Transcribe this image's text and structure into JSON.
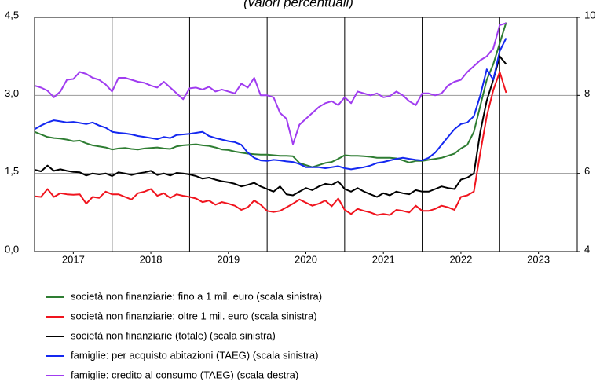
{
  "chart_data": {
    "type": "line",
    "subtitle": "(valori percentuali)",
    "x": [
      2017,
      2017.083,
      2017.167,
      2017.25,
      2017.333,
      2017.417,
      2017.5,
      2017.583,
      2017.667,
      2017.75,
      2017.833,
      2017.917,
      2018,
      2018.083,
      2018.167,
      2018.25,
      2018.333,
      2018.417,
      2018.5,
      2018.583,
      2018.667,
      2018.75,
      2018.833,
      2018.917,
      2019,
      2019.083,
      2019.167,
      2019.25,
      2019.333,
      2019.417,
      2019.5,
      2019.583,
      2019.667,
      2019.75,
      2019.833,
      2019.917,
      2020,
      2020.083,
      2020.167,
      2020.25,
      2020.333,
      2020.417,
      2020.5,
      2020.583,
      2020.667,
      2020.75,
      2020.833,
      2020.917,
      2021,
      2021.083,
      2021.167,
      2021.25,
      2021.333,
      2021.417,
      2021.5,
      2021.583,
      2021.667,
      2021.75,
      2021.833,
      2021.917,
      2022,
      2022.083,
      2022.167,
      2022.25,
      2022.333,
      2022.417,
      2022.5,
      2022.583,
      2022.667,
      2022.75,
      2022.833,
      2022.917,
      2023,
      2023.083
    ],
    "xlim": [
      2017,
      2024
    ],
    "xticks": [
      {
        "value": 2017.5,
        "label": "2017"
      },
      {
        "value": 2018.5,
        "label": "2018"
      },
      {
        "value": 2019.5,
        "label": "2019"
      },
      {
        "value": 2020.5,
        "label": "2020"
      },
      {
        "value": 2021.5,
        "label": "2021"
      },
      {
        "value": 2022.5,
        "label": "2022"
      },
      {
        "value": 2023.5,
        "label": "2023"
      }
    ],
    "ylim": [
      0,
      4.5
    ],
    "yticks": [
      {
        "value": 0,
        "label": "0,0"
      },
      {
        "value": 1.5,
        "label": "1,5"
      },
      {
        "value": 3,
        "label": "3,0"
      },
      {
        "value": 4.5,
        "label": "4,5"
      }
    ],
    "y2lim": [
      4,
      10
    ],
    "y2ticks": [
      4,
      6,
      8,
      10
    ],
    "grid": true,
    "series": [
      {
        "name": "società non finanziarie: fino a 1 mil. euro (scala sinistra)",
        "color": "#2e7d32",
        "values": [
          2.3,
          2.25,
          2.2,
          2.18,
          2.17,
          2.15,
          2.12,
          2.13,
          2.08,
          2.04,
          2.02,
          2.0,
          1.96,
          1.98,
          1.99,
          1.97,
          1.96,
          1.98,
          1.99,
          2.0,
          1.98,
          1.97,
          2.02,
          2.04,
          2.05,
          2.06,
          2.04,
          2.03,
          2.0,
          1.96,
          1.95,
          1.92,
          1.9,
          1.88,
          1.87,
          1.86,
          1.86,
          1.85,
          1.84,
          1.84,
          1.83,
          1.7,
          1.66,
          1.62,
          1.66,
          1.7,
          1.72,
          1.78,
          1.85,
          1.84,
          1.84,
          1.83,
          1.82,
          1.8,
          1.8,
          1.8,
          1.79,
          1.75,
          1.71,
          1.74,
          1.74,
          1.76,
          1.78,
          1.8,
          1.84,
          1.88,
          1.98,
          2.05,
          2.3,
          2.8,
          3.3,
          3.6,
          4.0,
          4.4
        ]
      },
      {
        "name": "società non finanziarie: oltre 1 mil. euro (scala sinistra)",
        "color": "#f0141e",
        "values": [
          1.06,
          1.05,
          1.2,
          1.05,
          1.12,
          1.1,
          1.09,
          1.1,
          0.92,
          1.05,
          1.03,
          1.15,
          1.1,
          1.1,
          1.05,
          1.0,
          1.12,
          1.15,
          1.2,
          1.07,
          1.12,
          1.03,
          1.1,
          1.07,
          1.05,
          1.02,
          0.95,
          0.98,
          0.9,
          0.95,
          0.92,
          0.88,
          0.8,
          0.85,
          0.98,
          0.9,
          0.78,
          0.76,
          0.78,
          0.85,
          0.92,
          1.0,
          0.94,
          0.88,
          0.92,
          0.98,
          0.87,
          1.02,
          0.8,
          0.72,
          0.82,
          0.78,
          0.75,
          0.7,
          0.72,
          0.7,
          0.8,
          0.78,
          0.75,
          0.88,
          0.78,
          0.78,
          0.82,
          0.88,
          0.85,
          0.8,
          1.05,
          1.08,
          1.15,
          1.9,
          2.6,
          3.1,
          3.45,
          3.05
        ]
      },
      {
        "name": "società non finanziarie (totale) (scala sinistra)",
        "color": "#000000",
        "values": [
          1.57,
          1.54,
          1.65,
          1.55,
          1.58,
          1.55,
          1.53,
          1.52,
          1.46,
          1.5,
          1.48,
          1.5,
          1.45,
          1.52,
          1.5,
          1.47,
          1.5,
          1.52,
          1.55,
          1.47,
          1.5,
          1.46,
          1.51,
          1.5,
          1.48,
          1.45,
          1.4,
          1.42,
          1.38,
          1.35,
          1.33,
          1.3,
          1.25,
          1.28,
          1.32,
          1.25,
          1.2,
          1.15,
          1.25,
          1.1,
          1.08,
          1.15,
          1.22,
          1.18,
          1.25,
          1.3,
          1.28,
          1.35,
          1.2,
          1.15,
          1.22,
          1.15,
          1.1,
          1.05,
          1.12,
          1.08,
          1.15,
          1.12,
          1.1,
          1.18,
          1.15,
          1.15,
          1.2,
          1.25,
          1.22,
          1.2,
          1.38,
          1.42,
          1.5,
          2.3,
          2.9,
          3.3,
          3.75,
          3.6
        ]
      },
      {
        "name": "famiglie: per acquisto abitazioni (TAEG) (scala sinistra)",
        "color": "#1428f0",
        "values": [
          2.35,
          2.42,
          2.48,
          2.52,
          2.5,
          2.48,
          2.49,
          2.47,
          2.45,
          2.48,
          2.42,
          2.38,
          2.3,
          2.28,
          2.27,
          2.25,
          2.22,
          2.2,
          2.18,
          2.16,
          2.2,
          2.18,
          2.24,
          2.25,
          2.26,
          2.28,
          2.3,
          2.22,
          2.18,
          2.15,
          2.12,
          2.1,
          2.05,
          1.9,
          1.8,
          1.75,
          1.74,
          1.76,
          1.75,
          1.73,
          1.72,
          1.68,
          1.62,
          1.62,
          1.62,
          1.6,
          1.62,
          1.64,
          1.6,
          1.58,
          1.6,
          1.62,
          1.65,
          1.7,
          1.72,
          1.75,
          1.78,
          1.8,
          1.78,
          1.76,
          1.75,
          1.8,
          1.9,
          2.05,
          2.2,
          2.35,
          2.45,
          2.48,
          2.6,
          3.0,
          3.5,
          3.3,
          3.85,
          4.1
        ]
      },
      {
        "name": "famiglie: credito al consumo (TAEG) (scala destra)",
        "color": "#a03cf0",
        "axis": "y2",
        "values": [
          8.25,
          8.2,
          8.12,
          7.95,
          8.1,
          8.4,
          8.42,
          8.6,
          8.55,
          8.45,
          8.4,
          8.28,
          8.1,
          8.45,
          8.45,
          8.4,
          8.35,
          8.32,
          8.25,
          8.2,
          8.35,
          8.2,
          8.05,
          7.9,
          8.18,
          8.2,
          8.15,
          8.22,
          8.1,
          8.15,
          8.1,
          8.05,
          8.3,
          8.2,
          8.45,
          8.0,
          8.0,
          7.95,
          7.55,
          7.4,
          6.75,
          7.25,
          7.4,
          7.55,
          7.7,
          7.8,
          7.85,
          7.75,
          7.95,
          7.8,
          8.1,
          8.05,
          8.0,
          8.05,
          7.95,
          7.98,
          8.1,
          8.0,
          7.85,
          7.75,
          8.05,
          8.05,
          8.0,
          8.05,
          8.25,
          8.35,
          8.4,
          8.6,
          8.75,
          8.9,
          9.0,
          9.2,
          9.8,
          9.85
        ]
      }
    ]
  }
}
